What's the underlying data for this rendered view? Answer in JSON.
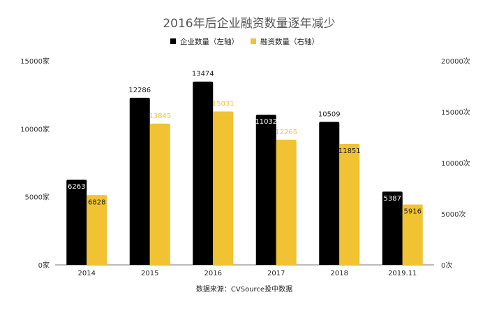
{
  "chart_data": {
    "type": "bar",
    "title": "2016年后企业融资数量逐年减少",
    "categories": [
      "2014",
      "2015",
      "2016",
      "2017",
      "2018",
      "2019.11"
    ],
    "series": [
      {
        "name": "企业数量（左轴）",
        "axis": "left",
        "color": "#000000",
        "values": [
          6263,
          12286,
          13474,
          11032,
          10509,
          5387
        ],
        "labels": [
          "6263",
          "12286",
          "13474",
          "11032",
          "10509",
          "5387"
        ]
      },
      {
        "name": "融资数量（右轴）",
        "axis": "right",
        "color": "#f1c232",
        "values": [
          6828,
          13845,
          15031,
          12265,
          11851,
          5916
        ],
        "labels": [
          "6828",
          "13845",
          "15031",
          "12265",
          "11851",
          "5916"
        ]
      }
    ],
    "ylim_left": [
      0,
      15000
    ],
    "ylim_right": [
      0,
      20000
    ],
    "yticks_left": [
      "0家",
      "5000家",
      "10000家",
      "15000家"
    ],
    "yticks_right": [
      "0次",
      "5000次",
      "10000次",
      "15000次",
      "20000次"
    ],
    "legend_position": "top-center",
    "grid": false,
    "source": "数据来源：CVSource投中数据"
  }
}
